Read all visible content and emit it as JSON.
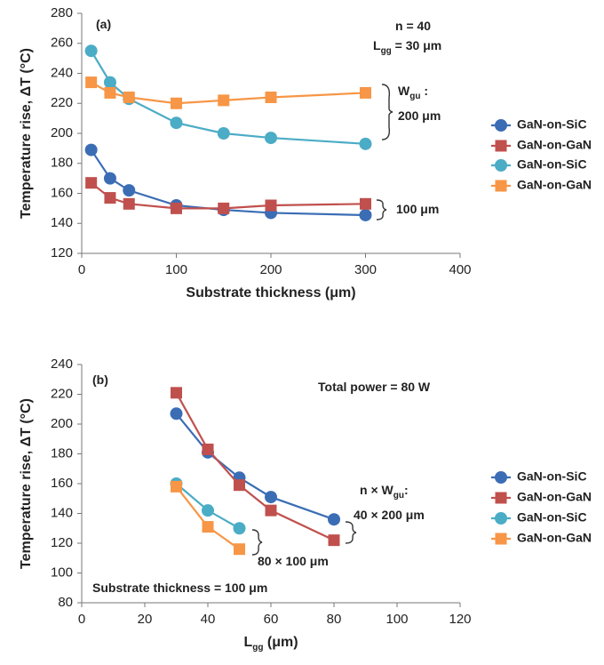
{
  "chart_data": [
    {
      "type": "line",
      "ylabel": "Temperature rise, ΔT (°C)",
      "xlabel": "Substrate thickness (μm)",
      "xlim": [
        0,
        400
      ],
      "xticks": [
        0,
        100,
        200,
        300,
        400
      ],
      "ylim": [
        120,
        280
      ],
      "yticks": [
        120,
        140,
        160,
        180,
        200,
        220,
        240,
        260,
        280
      ],
      "series": [
        {
          "name": "GaN-on-SiC",
          "color": "#3b6db5",
          "marker": "circle",
          "x": [
            10,
            30,
            50,
            100,
            150,
            200,
            300
          ],
          "values": [
            189,
            170,
            162,
            152,
            149,
            147,
            145.5
          ]
        },
        {
          "name": "GaN-on-GaN",
          "color": "#c0504d",
          "marker": "square",
          "x": [
            10,
            30,
            50,
            100,
            150,
            200,
            300
          ],
          "values": [
            167,
            157,
            153,
            150,
            150,
            152,
            153
          ]
        },
        {
          "name": "GaN-on-SiC",
          "color": "#4bacc6",
          "marker": "circle",
          "x": [
            10,
            30,
            50,
            100,
            150,
            200,
            300
          ],
          "values": [
            255,
            234,
            223,
            207,
            200,
            197,
            193
          ]
        },
        {
          "name": "GaN-on-GaN",
          "color": "#f79646",
          "marker": "square",
          "x": [
            10,
            30,
            50,
            100,
            150,
            200,
            300
          ],
          "values": [
            234,
            227,
            224,
            220,
            222,
            224,
            227
          ]
        }
      ],
      "annotations": [
        [
          {
            "text": "(a)"
          }
        ],
        [
          {
            "text": "n = 40"
          }
        ],
        [
          {
            "text": "L"
          },
          {
            "text": "gg",
            "sub": true
          },
          {
            "text": " = 30 μm"
          }
        ],
        [
          {
            "text": "W"
          },
          {
            "text": "gu",
            "sub": true
          },
          {
            "text": " :"
          }
        ],
        [
          {
            "text": "200 μm"
          }
        ],
        [
          {
            "text": "100 μm"
          }
        ]
      ]
    },
    {
      "type": "line",
      "ylabel": "Temperature rise, ΔT (°C)",
      "xlabel": [
        {
          "text": "L"
        },
        {
          "text": "gg",
          "sub": true
        },
        {
          "text": " (μm)"
        }
      ],
      "xlim": [
        0,
        120
      ],
      "xticks": [
        0,
        20,
        40,
        60,
        80,
        100,
        120
      ],
      "ylim": [
        80,
        240
      ],
      "yticks": [
        80,
        100,
        120,
        140,
        160,
        180,
        200,
        220,
        240
      ],
      "series": [
        {
          "name": "GaN-on-SiC",
          "color": "#3b6db5",
          "marker": "circle",
          "x": [
            30,
            40,
            50,
            60,
            80
          ],
          "values": [
            207,
            181,
            164,
            151,
            136
          ]
        },
        {
          "name": "GaN-on-GaN",
          "color": "#c0504d",
          "marker": "square",
          "x": [
            30,
            40,
            50,
            60,
            80
          ],
          "values": [
            221,
            183,
            159,
            142,
            122
          ]
        },
        {
          "name": "GaN-on-SiC",
          "color": "#4bacc6",
          "marker": "circle",
          "x": [
            30,
            40,
            50
          ],
          "values": [
            160,
            142,
            130
          ]
        },
        {
          "name": "GaN-on-GaN",
          "color": "#f79646",
          "marker": "square",
          "x": [
            30,
            40,
            50
          ],
          "values": [
            158,
            131,
            116
          ]
        }
      ],
      "annotations": [
        [
          {
            "text": "(b)"
          }
        ],
        [
          {
            "text": "Total power = 80 W"
          }
        ],
        [
          {
            "text": "n × W"
          },
          {
            "text": "gu",
            "sub": true
          },
          {
            "text": ":"
          }
        ],
        [
          {
            "text": "40 × 200 μm"
          }
        ],
        [
          {
            "text": "80 × 100 μm"
          }
        ],
        [
          {
            "text": "Substrate thickness = 100 μm"
          }
        ]
      ]
    }
  ]
}
